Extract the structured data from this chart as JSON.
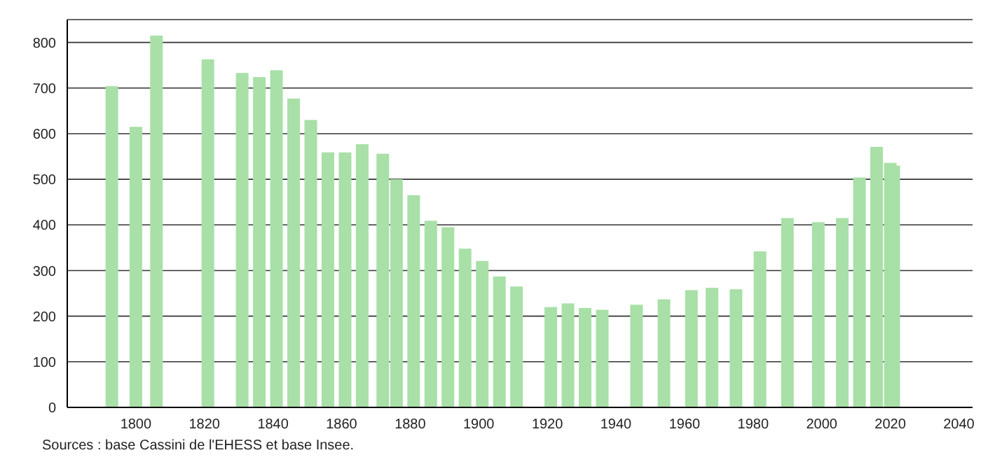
{
  "chart_data": {
    "type": "bar",
    "x": [
      1793,
      1800,
      1806,
      1821,
      1831,
      1836,
      1841,
      1846,
      1851,
      1856,
      1861,
      1866,
      1872,
      1876,
      1881,
      1886,
      1891,
      1896,
      1901,
      1906,
      1911,
      1921,
      1926,
      1931,
      1936,
      1946,
      1954,
      1962,
      1968,
      1975,
      1982,
      1990,
      1999,
      2006,
      2011,
      2016,
      2020,
      2021
    ],
    "values": [
      704,
      615,
      815,
      763,
      733,
      724,
      739,
      677,
      630,
      559,
      559,
      577,
      556,
      500,
      465,
      409,
      395,
      348,
      321,
      287,
      265,
      220,
      228,
      218,
      214,
      225,
      237,
      257,
      262,
      259,
      342,
      415,
      406,
      415,
      504,
      571,
      536,
      530
    ],
    "color": "#a8e0a8",
    "xlim": [
      1780,
      2044
    ],
    "xticks": [
      1800,
      1820,
      1840,
      1860,
      1880,
      1900,
      1920,
      1940,
      1960,
      1980,
      2000,
      2020,
      2040
    ],
    "ylim": [
      0,
      850
    ],
    "yticks": [
      0,
      100,
      200,
      300,
      400,
      500,
      600,
      700,
      800
    ],
    "grid": "y",
    "annotations": [
      "Sources : base Cassini de l'EHESS et base Insee."
    ]
  }
}
